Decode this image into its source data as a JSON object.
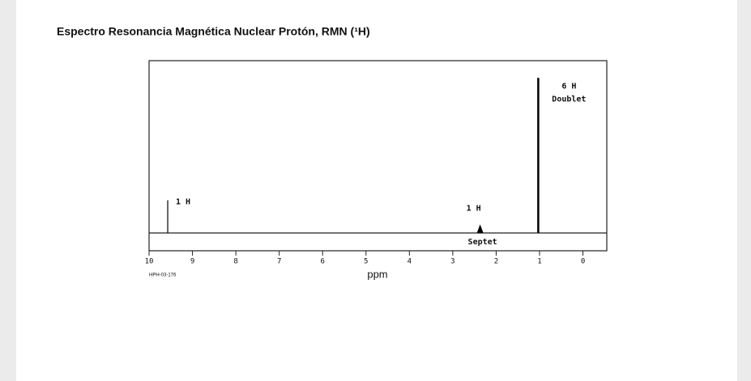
{
  "chart_data": {
    "type": "stem",
    "title": "Espectro Resonancia Magnética Nuclear Protón, RMN (¹H)",
    "x_label": "ppm",
    "spectrum_id": "HPH-03-176",
    "xlim": [
      10,
      -0.55
    ],
    "xticks": [
      10,
      9,
      8,
      7,
      6,
      5,
      4,
      3,
      2,
      1,
      0
    ],
    "ylim": [
      0,
      1
    ],
    "color": "#000000",
    "peaks": [
      {
        "x": 9.57,
        "value": 0.19,
        "labels": [
          "1 H"
        ]
      },
      {
        "x": 2.37,
        "value": 0.05,
        "labels": [
          "1 H",
          "Septet"
        ]
      },
      {
        "x": 1.03,
        "value": 0.9,
        "labels": [
          "6 H",
          "Doublet"
        ]
      }
    ]
  }
}
